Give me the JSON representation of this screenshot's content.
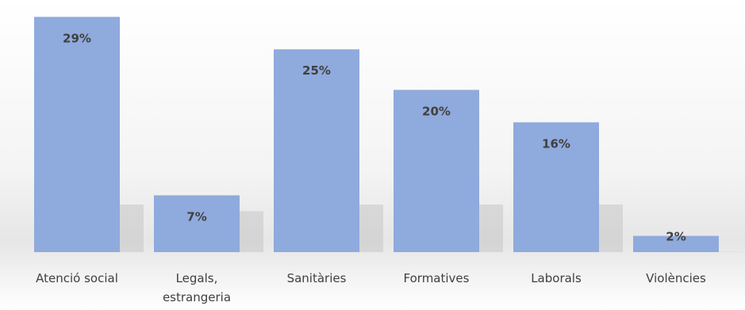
{
  "chart_data": {
    "type": "bar",
    "categories": [
      "Atenció social",
      "Legals, estrangeria",
      "Sanitàries",
      "Formatives",
      "Laborals",
      "Violències"
    ],
    "category_lines": [
      [
        "Atenció social"
      ],
      [
        "Legals,",
        "estrangeria"
      ],
      [
        "Sanitàries"
      ],
      [
        "Formatives"
      ],
      [
        "Laborals"
      ],
      [
        "Violències"
      ]
    ],
    "values": [
      29,
      7,
      25,
      20,
      16,
      2
    ],
    "data_labels": [
      "29%",
      "7%",
      "25%",
      "20%",
      "16%",
      "2%"
    ],
    "unit": "%",
    "title": "",
    "xlabel": "",
    "ylabel": "",
    "ylim": [
      0,
      30
    ],
    "grid": false,
    "legend": "none",
    "colors": {
      "bar": "#8faadc",
      "label_text": "#404040"
    }
  }
}
